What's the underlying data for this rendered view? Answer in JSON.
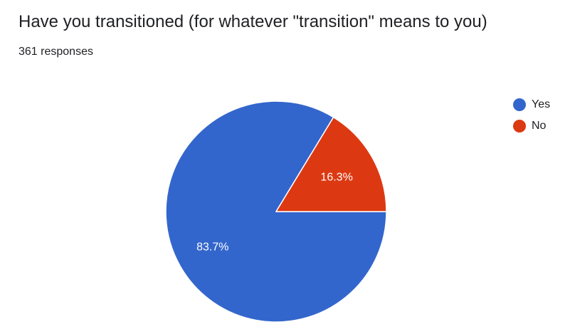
{
  "question": {
    "title": "Have you transitioned (for whatever \"transition\" means to you)",
    "responses": "361 responses"
  },
  "chart_data": {
    "type": "pie",
    "categories": [
      "Yes",
      "No"
    ],
    "values": [
      83.7,
      16.3
    ],
    "value_labels": [
      "83.7%",
      "16.3%"
    ],
    "colors": [
      "#3366cc",
      "#dc3912"
    ],
    "legend_position": "right"
  }
}
